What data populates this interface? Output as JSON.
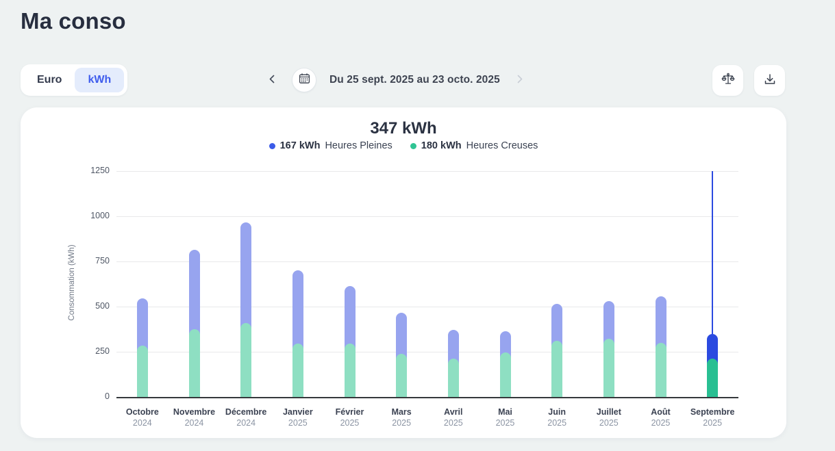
{
  "page": {
    "title": "Ma conso"
  },
  "toolbar": {
    "unit_toggle": {
      "options": [
        {
          "label": "Euro",
          "selected": false
        },
        {
          "label": "kWh",
          "selected": true
        }
      ]
    },
    "date_nav": {
      "label": "Du 25 sept. 2025 au 23 octo. 2025"
    }
  },
  "colors": {
    "accent_blue": "#3f5ded",
    "toggle_active_bg": "#e4ecfc",
    "page_background": "#eef2f2",
    "axis": "#35383c"
  },
  "chart_data": {
    "type": "bar",
    "stacked": true,
    "title": "347 kWh",
    "ylabel": "Consommation (kWh)",
    "ylim": [
      0,
      1250
    ],
    "yticks": [
      0,
      250,
      500,
      750,
      1000,
      1250
    ],
    "grid": true,
    "legend_position": "top",
    "legend": [
      {
        "value": "167 kWh",
        "label": "Heures Pleines",
        "color": "#3b5be8"
      },
      {
        "value": "180 kWh",
        "label": "Heures Creuses",
        "color": "#30c493"
      }
    ],
    "categories": [
      {
        "month": "Octobre",
        "year": "2024"
      },
      {
        "month": "Novembre",
        "year": "2024"
      },
      {
        "month": "Décembre",
        "year": "2024"
      },
      {
        "month": "Janvier",
        "year": "2025"
      },
      {
        "month": "Février",
        "year": "2025"
      },
      {
        "month": "Mars",
        "year": "2025"
      },
      {
        "month": "Avril",
        "year": "2025"
      },
      {
        "month": "Mai",
        "year": "2025"
      },
      {
        "month": "Juin",
        "year": "2025"
      },
      {
        "month": "Juillet",
        "year": "2025"
      },
      {
        "month": "Août",
        "year": "2025"
      },
      {
        "month": "Septembre",
        "year": "2025"
      }
    ],
    "series": [
      {
        "name": "Heures Pleines",
        "color": "#97a4ef",
        "selected_color": "#2b4ae0",
        "values": [
          290,
          470,
          585,
          435,
          350,
          255,
          190,
          150,
          235,
          240,
          285,
          167
        ]
      },
      {
        "name": "Heures Creuses",
        "color": "#8edfc2",
        "selected_color": "#28bf92",
        "values": [
          255,
          345,
          380,
          265,
          265,
          210,
          180,
          215,
          280,
          290,
          270,
          180
        ]
      }
    ],
    "selected_index": 11
  }
}
